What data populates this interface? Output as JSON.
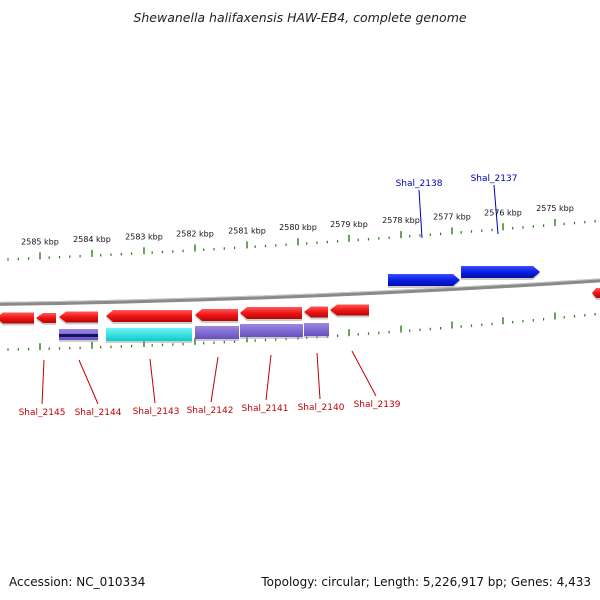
{
  "title": "Shewanella halifaxensis HAW-EB4, complete genome",
  "footer": {
    "accession": "Accession: NC_010334",
    "info": "Topology: circular; Length: 5,226,917 bp; Genes: 4,433"
  },
  "colors": {
    "forward_gene": "#0a1ee6",
    "reverse_gene": "#f01414",
    "feature_cyan": "#12e6e6",
    "feature_purple": "#7c66d0",
    "feature_navy": "#141464",
    "backbone": "#808080",
    "tick": "#2a7a1a",
    "label_forward": "#0000b4",
    "label_reverse": "#c00000"
  },
  "ticks": [
    {
      "label": "2585 kbp"
    },
    {
      "label": "2584 kbp"
    },
    {
      "label": "2583 kbp"
    },
    {
      "label": "2582 kbp"
    },
    {
      "label": "2581 kbp"
    },
    {
      "label": "2580 kbp"
    },
    {
      "label": "2579 kbp"
    },
    {
      "label": "2578 kbp"
    },
    {
      "label": "2577 kbp"
    },
    {
      "label": "2576 kbp"
    },
    {
      "label": "2575 kbp"
    }
  ],
  "forward_genes": [
    {
      "name": "Shal_2138"
    },
    {
      "name": "Shal_2137"
    }
  ],
  "reverse_genes": [
    {
      "name": "Shal_2145"
    },
    {
      "name": "Shal_2144"
    },
    {
      "name": "Shal_2143"
    },
    {
      "name": "Shal_2142"
    },
    {
      "name": "Shal_2141"
    },
    {
      "name": "Shal_2140"
    },
    {
      "name": "Shal_2139"
    }
  ]
}
